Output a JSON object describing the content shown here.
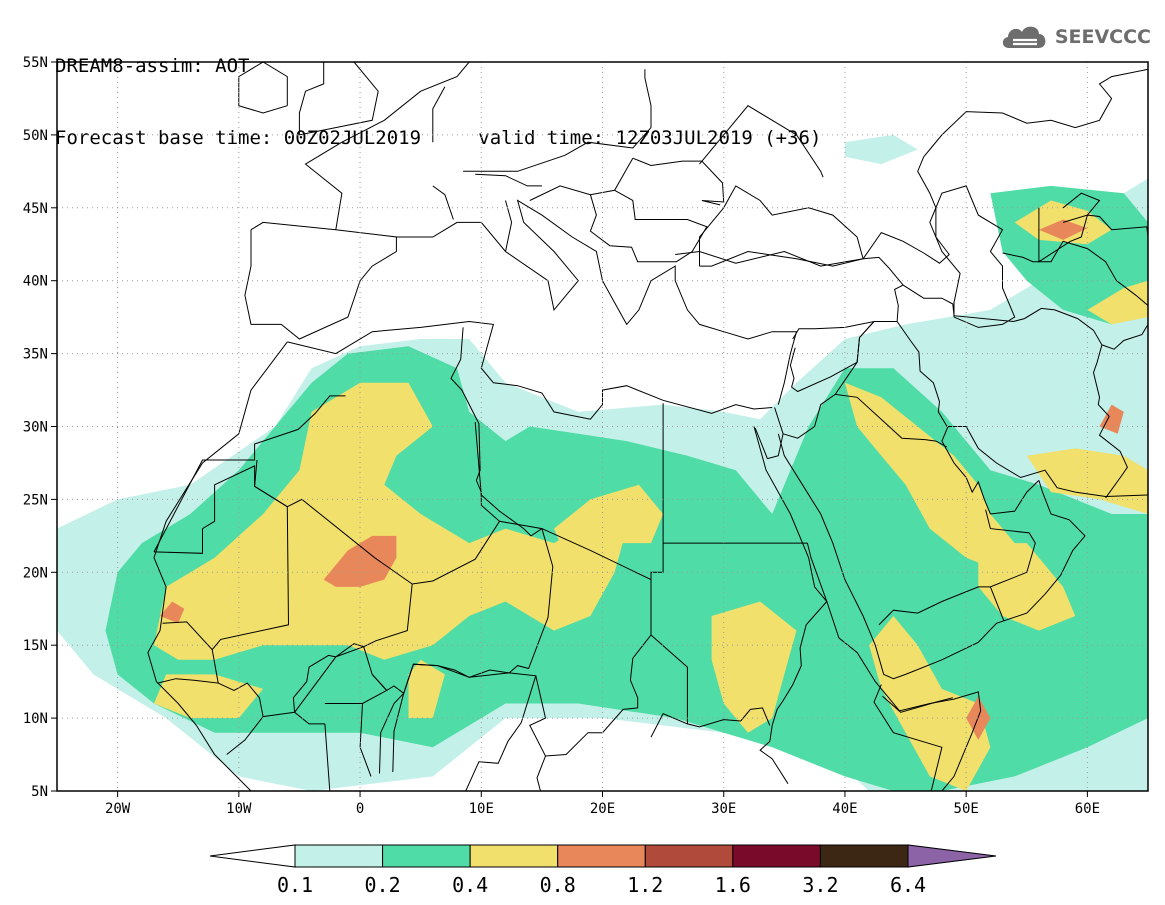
{
  "header": {
    "line1": "DREAM8-assim: AOT",
    "line2_base": "Forecast base time: 00Z02JUL2019",
    "line2_valid": "valid time: 12Z03JUL2019 (+36)"
  },
  "logo": {
    "icon": "cloud-icon",
    "text": "SEEVCCC"
  },
  "map": {
    "lon_range": [
      -25,
      65
    ],
    "lat_range": [
      5,
      55
    ],
    "lat_ticks": [
      "55N",
      "50N",
      "45N",
      "40N",
      "35N",
      "30N",
      "25N",
      "20N",
      "15N",
      "10N",
      "5N"
    ],
    "lon_ticks": [
      "20W",
      "10W",
      "0",
      "10E",
      "20E",
      "30E",
      "40E",
      "50E",
      "60E"
    ],
    "grid": "dotted",
    "background": "#ffffff",
    "borders_color": "#000000"
  },
  "legend": {
    "colors": [
      "#ffffff",
      "#c3f0e8",
      "#4fdca6",
      "#f1e06c",
      "#e8885a",
      "#b04a3a",
      "#7a0a2a",
      "#3c2614",
      "#8b63a6"
    ],
    "labels": [
      "0.1",
      "0.2",
      "0.4",
      "0.8",
      "1.2",
      "1.6",
      "3.2",
      "6.4"
    ]
  }
}
